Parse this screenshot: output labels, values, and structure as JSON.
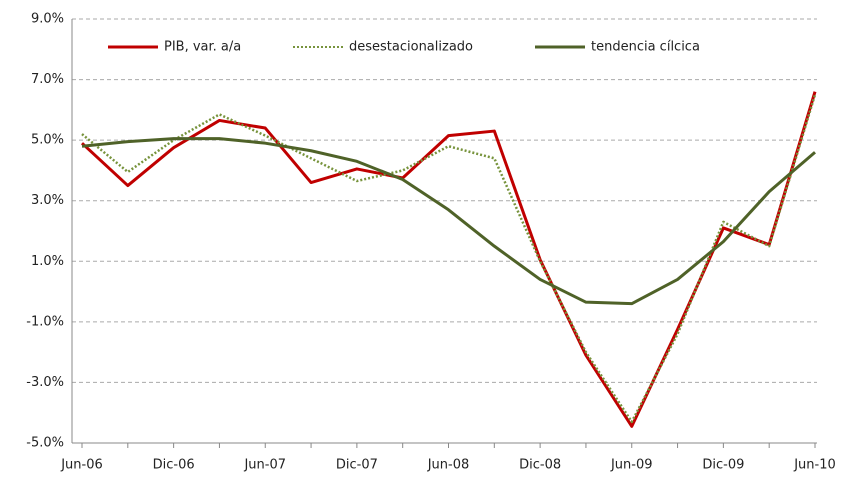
{
  "chart_data": {
    "type": "line",
    "categories": [
      "Jun-06",
      null,
      "Dic-06",
      null,
      "Jun-07",
      null,
      "Dic-07",
      null,
      "Jun-08",
      null,
      "Dic-08",
      null,
      "Jun-09",
      null,
      "Dic-09",
      null,
      "Jun-10"
    ],
    "series": [
      {
        "name": "PIB, var. a/a",
        "color": "#c00000",
        "style": "solid",
        "values": [
          4.9,
          3.5,
          4.75,
          5.65,
          5.4,
          3.6,
          4.05,
          3.75,
          5.15,
          5.3,
          1.05,
          -2.1,
          -4.45,
          -1.25,
          2.1,
          1.55,
          6.6
        ]
      },
      {
        "name": "desestacionalizado",
        "color": "#77933c",
        "style": "dotted",
        "values": [
          5.2,
          3.95,
          5.0,
          5.85,
          5.15,
          4.4,
          3.65,
          4.0,
          4.8,
          4.4,
          1.0,
          -2.0,
          -4.3,
          -1.4,
          2.3,
          1.5,
          6.5
        ]
      },
      {
        "name": "tendencia cílcica",
        "color": "#4f6228",
        "style": "solid",
        "values": [
          4.8,
          4.95,
          5.05,
          5.05,
          4.9,
          4.65,
          4.3,
          3.7,
          2.7,
          1.5,
          0.4,
          -0.35,
          -0.4,
          0.4,
          1.65,
          3.3,
          4.6
        ]
      }
    ],
    "ylim": [
      -5,
      9
    ],
    "yticks": [
      {
        "value": -5,
        "label": "-5.0%"
      },
      {
        "value": -3,
        "label": "-3.0%"
      },
      {
        "value": -1,
        "label": "-1.0%"
      },
      {
        "value": 1,
        "label": "1.0%"
      },
      {
        "value": 3,
        "label": "3.0%"
      },
      {
        "value": 5,
        "label": "5.0%"
      },
      {
        "value": 7,
        "label": "7.0%"
      },
      {
        "value": 9,
        "label": "9.0%"
      }
    ],
    "grid": true,
    "legend": "top"
  }
}
